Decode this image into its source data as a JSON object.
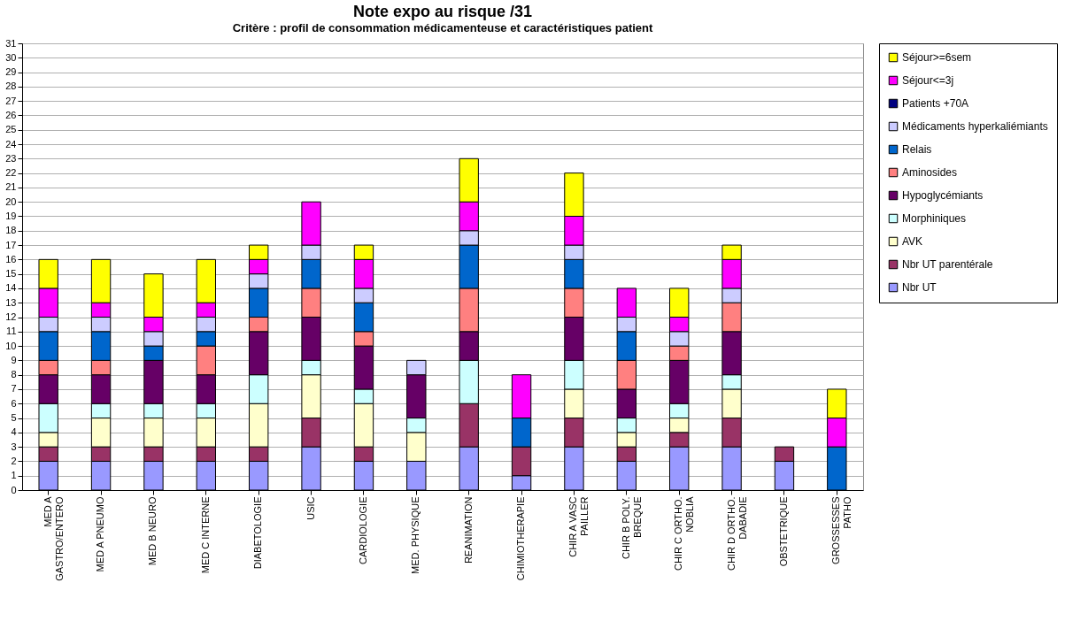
{
  "chart_data": {
    "type": "bar",
    "stacked": true,
    "title": "Note expo au risque /31",
    "subtitle": "Critère : profil de consommation médicamenteuse et caractéristiques patient",
    "categories": [
      "MED A\nGASTRO/ENTERO",
      "MED A PNEUMO",
      "MED B NEURO",
      "MED C INTERNE",
      "DIABETOLOGIE",
      "USIC",
      "CARDIOLOGIE",
      "MED. PHYSIQUE",
      "REANIMATION",
      "CHIMIOTHERAPIE",
      "CHIR A VASC\nPAILLER",
      "CHIR B POLY.\nBREQUE",
      "CHIR C ORTHO.\nNOBLIA",
      "CHIR D ORTHO.\nDABADIE",
      "OBSTETRIQUE",
      "GROSSESSES\nPATHO"
    ],
    "series": [
      {
        "name": "Nbr UT",
        "color": "#9999ff",
        "values": [
          2,
          2,
          2,
          2,
          2,
          3,
          2,
          2,
          3,
          1,
          3,
          2,
          3,
          3,
          2,
          0
        ]
      },
      {
        "name": "Nbr UT parentérale",
        "color": "#993366",
        "values": [
          1,
          1,
          1,
          1,
          1,
          2,
          1,
          0,
          3,
          2,
          2,
          1,
          1,
          2,
          1,
          0
        ]
      },
      {
        "name": "AVK",
        "color": "#ffffcc",
        "values": [
          1,
          2,
          2,
          2,
          3,
          3,
          3,
          2,
          0,
          0,
          2,
          1,
          1,
          2,
          0,
          0
        ]
      },
      {
        "name": "Morphiniques",
        "color": "#ccffff",
        "values": [
          2,
          1,
          1,
          1,
          2,
          1,
          1,
          1,
          3,
          0,
          2,
          1,
          1,
          1,
          0,
          0
        ]
      },
      {
        "name": "Hypoglycémiants",
        "color": "#660066",
        "values": [
          2,
          2,
          3,
          2,
          3,
          3,
          3,
          3,
          2,
          0,
          3,
          2,
          3,
          3,
          0,
          0
        ]
      },
      {
        "name": "Aminosides",
        "color": "#ff8080",
        "values": [
          1,
          1,
          0,
          2,
          1,
          2,
          1,
          0,
          3,
          0,
          2,
          2,
          1,
          2,
          0,
          0
        ]
      },
      {
        "name": "Relais",
        "color": "#0066cc",
        "values": [
          2,
          2,
          1,
          1,
          2,
          2,
          2,
          0,
          3,
          2,
          2,
          2,
          0,
          0,
          0,
          3
        ]
      },
      {
        "name": "Médicaments hyperkaliémiants",
        "color": "#ccccff",
        "values": [
          1,
          1,
          1,
          1,
          1,
          1,
          1,
          1,
          1,
          0,
          1,
          1,
          1,
          1,
          0,
          0
        ]
      },
      {
        "name": "Patients +70A",
        "color": "#000080",
        "values": [
          0,
          0,
          0,
          0,
          0,
          0,
          0,
          0,
          0,
          0,
          0,
          0,
          0,
          0,
          0,
          0
        ]
      },
      {
        "name": "Séjour<=3j",
        "color": "#ff00ff",
        "values": [
          2,
          1,
          1,
          1,
          1,
          3,
          2,
          0,
          2,
          3,
          2,
          2,
          1,
          2,
          0,
          2
        ]
      },
      {
        "name": "Séjour>=6sem",
        "color": "#ffff00",
        "values": [
          2,
          3,
          3,
          3,
          1,
          0,
          1,
          0,
          3,
          0,
          3,
          0,
          2,
          1,
          0,
          2
        ]
      }
    ],
    "ylim": [
      0,
      31
    ],
    "yticks": [
      0,
      1,
      2,
      3,
      4,
      5,
      6,
      7,
      8,
      9,
      10,
      11,
      12,
      13,
      14,
      15,
      16,
      17,
      18,
      19,
      20,
      21,
      22,
      23,
      24,
      25,
      26,
      27,
      28,
      29,
      30,
      31
    ],
    "grid": "y",
    "legend": "right"
  }
}
